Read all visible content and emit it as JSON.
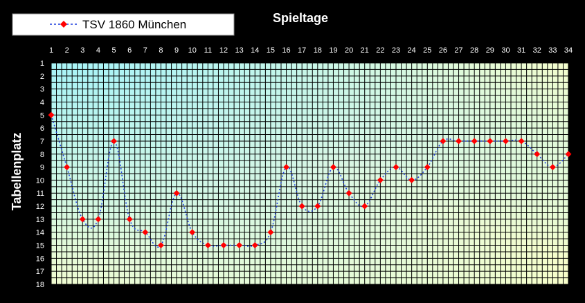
{
  "chart_data": {
    "type": "line",
    "title": "Spieltage",
    "xlabel": "",
    "ylabel": "Tabellenplatz",
    "x": [
      1,
      2,
      3,
      4,
      5,
      6,
      7,
      8,
      9,
      10,
      11,
      12,
      13,
      14,
      15,
      16,
      17,
      18,
      19,
      20,
      21,
      22,
      23,
      24,
      25,
      26,
      27,
      28,
      29,
      30,
      31,
      32,
      33,
      34
    ],
    "xlim": [
      1,
      34
    ],
    "ylim": [
      1,
      18
    ],
    "y_inverted": true,
    "x_axis_position": "top",
    "grid": true,
    "legend_position": "top-left",
    "series": [
      {
        "name": "TSV 1860 München",
        "values": [
          5,
          9,
          13,
          13,
          7,
          13,
          14,
          15,
          11,
          14,
          15,
          15,
          15,
          15,
          14,
          9,
          12,
          12,
          9,
          11,
          12,
          10,
          9,
          10,
          9,
          7,
          7,
          7,
          7,
          7,
          7,
          8,
          9,
          8
        ],
        "line_color": "#1f3fdd",
        "marker_color": "#ff0000",
        "line_style": "dotted"
      }
    ]
  },
  "colors": {
    "background": "#000000",
    "grid": "#000000",
    "text": "#ffffff",
    "legend_bg": "#ffffff"
  }
}
